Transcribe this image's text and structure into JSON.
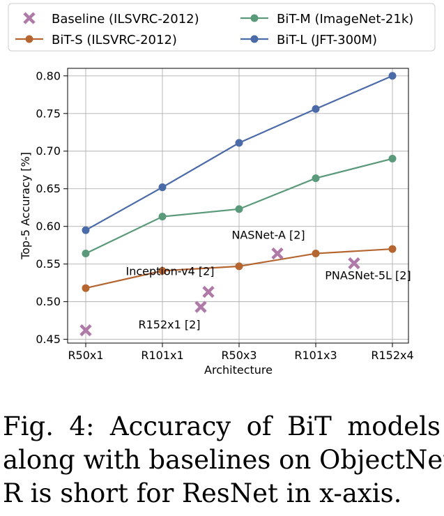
{
  "chart_data": {
    "type": "line",
    "categories": [
      "R50x1",
      "R101x1",
      "R50x3",
      "R101x3",
      "R152x4"
    ],
    "xlabel": "Architecture",
    "ylabel": "Top-5 Accuracy [%]",
    "ylim": [
      0.445,
      0.81
    ],
    "yticks": [
      0.45,
      0.5,
      0.55,
      0.6,
      0.65,
      0.7,
      0.75,
      0.8
    ],
    "ytick_labels": [
      "0.45",
      "0.50",
      "0.55",
      "0.60",
      "0.65",
      "0.70",
      "0.75",
      "0.80"
    ],
    "grid": true,
    "legend_position": "top",
    "series": [
      {
        "name": "BiT-S (ILSVRC-2012)",
        "color": "#b5652f",
        "values": [
          0.518,
          0.541,
          0.547,
          0.564,
          0.57
        ]
      },
      {
        "name": "BiT-M (ImageNet-21k)",
        "color": "#5a9a7a",
        "values": [
          0.564,
          0.613,
          0.623,
          0.664,
          0.69
        ]
      },
      {
        "name": "BiT-L (JFT-300M)",
        "color": "#4a6aa8",
        "values": [
          0.595,
          0.652,
          0.711,
          0.756,
          0.8
        ]
      }
    ],
    "baselines": {
      "name": "Baseline (ILSVRC-2012)",
      "color": "#b07aa8",
      "points": [
        {
          "x": 0.0,
          "y": 0.462,
          "label": ""
        },
        {
          "x": 1.5,
          "y": 0.493,
          "label": "R152x1 [2]"
        },
        {
          "x": 1.6,
          "y": 0.513,
          "label": "Inception-v4 [2]"
        },
        {
          "x": 2.5,
          "y": 0.564,
          "label": "NASNet-A [2]"
        },
        {
          "x": 3.5,
          "y": 0.551,
          "label": "PNASNet-5L [2]"
        }
      ]
    }
  },
  "caption": {
    "line1": "Fig. 4:  Accuracy  of  BiT  models",
    "line2": "along with baselines on ObjectNet.",
    "line3": "R is short for ResNet in x-axis."
  }
}
